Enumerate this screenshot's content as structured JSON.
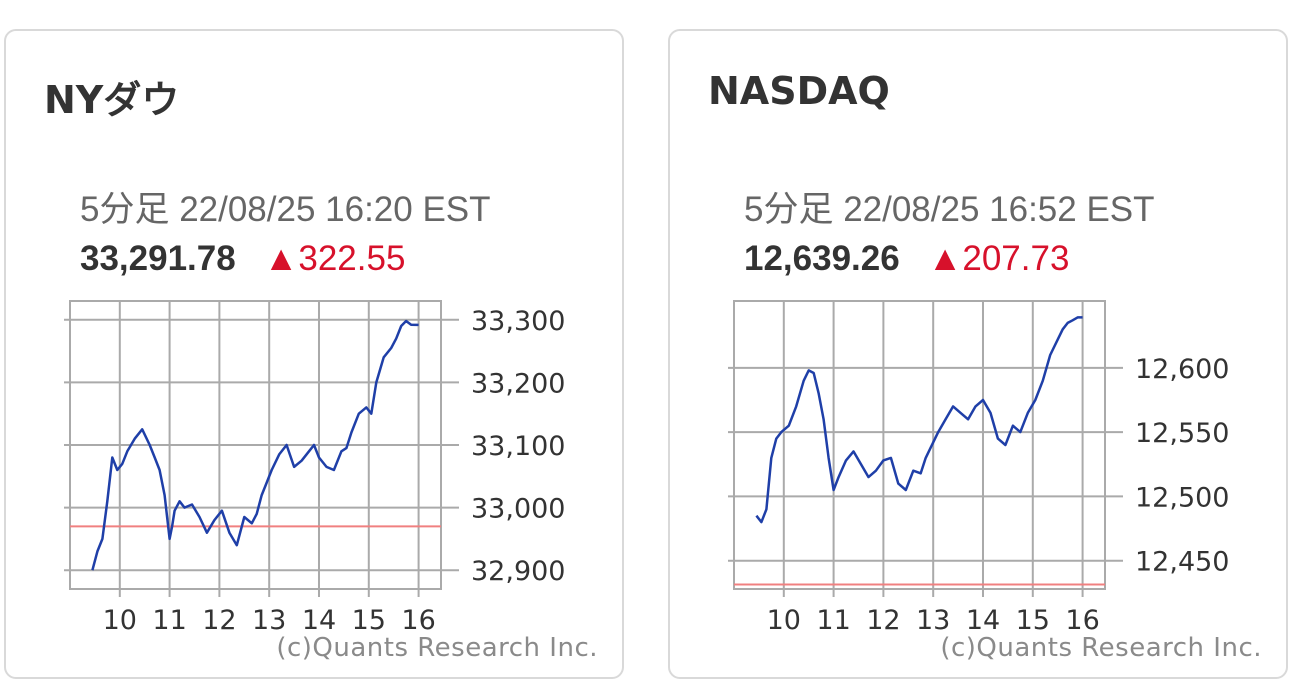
{
  "cards": [
    {
      "title": "NYダウ",
      "timestamp": "5分足 22/08/25 16:20 EST",
      "price": "33,291.78",
      "change_arrow": "▲",
      "change": "322.55",
      "credit": "(c)Quants Research Inc."
    },
    {
      "title": "NASDAQ",
      "timestamp": "5分足 22/08/25 16:52 EST",
      "price": "12,639.26",
      "change_arrow": "▲",
      "change": "207.73",
      "credit": "(c)Quants Research Inc."
    }
  ],
  "colors": {
    "line": "#1f3fa8",
    "reference": "#f08080",
    "grid": "#aaaaaa",
    "up": "#d7112b"
  },
  "chart_data": [
    {
      "type": "line",
      "x_tick_labels": [
        "10",
        "11",
        "12",
        "13",
        "14",
        "15",
        "16"
      ],
      "x_ticks": [
        10,
        11,
        12,
        13,
        14,
        15,
        16
      ],
      "xlim": [
        9.0,
        16.45
      ],
      "y_tick_labels": [
        "33,300",
        "33,200",
        "33,100",
        "33,000",
        "32,900"
      ],
      "y_ticks": [
        33300,
        33200,
        33100,
        33000,
        32900
      ],
      "ylim": [
        32870,
        33330
      ],
      "reference_line": 32970,
      "grid": true,
      "series": [
        {
          "x": [
            9.45,
            9.55,
            9.65,
            9.75,
            9.85,
            9.95,
            10.05,
            10.15,
            10.3,
            10.45,
            10.6,
            10.7,
            10.8,
            10.9,
            11.0,
            11.05,
            11.1,
            11.2,
            11.3,
            11.45,
            11.6,
            11.75,
            11.9,
            12.05,
            12.2,
            12.35,
            12.5,
            12.65,
            12.75,
            12.85,
            12.95,
            13.05,
            13.2,
            13.35,
            13.5,
            13.65,
            13.8,
            13.9,
            14.0,
            14.15,
            14.3,
            14.45,
            14.55,
            14.65,
            14.8,
            14.95,
            15.05,
            15.15,
            15.3,
            15.45,
            15.55,
            15.65,
            15.75,
            15.85,
            15.95,
            16.0
          ],
          "y": [
            32900,
            32930,
            32950,
            33010,
            33080,
            33060,
            33070,
            33090,
            33110,
            33125,
            33100,
            33080,
            33060,
            33020,
            32950,
            32970,
            32995,
            33010,
            33000,
            33005,
            32985,
            32960,
            32980,
            32995,
            32960,
            32940,
            32985,
            32975,
            32990,
            33020,
            33040,
            33060,
            33085,
            33100,
            33065,
            33075,
            33090,
            33100,
            33080,
            33065,
            33060,
            33090,
            33095,
            33120,
            33150,
            33160,
            33150,
            33200,
            33240,
            33255,
            33270,
            33290,
            33298,
            33292,
            33291.78,
            33291.78
          ]
        }
      ]
    },
    {
      "type": "line",
      "x_tick_labels": [
        "10",
        "11",
        "12",
        "13",
        "14",
        "15",
        "16"
      ],
      "x_ticks": [
        10,
        11,
        12,
        13,
        14,
        15,
        16
      ],
      "xlim": [
        9.0,
        16.45
      ],
      "y_tick_labels": [
        "12,600",
        "12,550",
        "12,500",
        "12,450"
      ],
      "y_ticks": [
        12600,
        12550,
        12500,
        12450
      ],
      "ylim": [
        12428,
        12652
      ],
      "reference_line": 12431.5,
      "grid": true,
      "series": [
        {
          "x": [
            9.45,
            9.55,
            9.65,
            9.75,
            9.85,
            9.95,
            10.1,
            10.25,
            10.4,
            10.5,
            10.6,
            10.7,
            10.8,
            10.9,
            11.0,
            11.1,
            11.25,
            11.4,
            11.55,
            11.7,
            11.85,
            12.0,
            12.15,
            12.3,
            12.45,
            12.6,
            12.75,
            12.85,
            12.95,
            13.1,
            13.25,
            13.4,
            13.55,
            13.7,
            13.85,
            14.0,
            14.15,
            14.3,
            14.45,
            14.6,
            14.75,
            14.9,
            15.05,
            15.2,
            15.35,
            15.5,
            15.6,
            15.7,
            15.8,
            15.9,
            16.0
          ],
          "y": [
            12485,
            12480,
            12490,
            12530,
            12545,
            12550,
            12555,
            12570,
            12590,
            12598,
            12596,
            12580,
            12560,
            12530,
            12505,
            12515,
            12528,
            12535,
            12525,
            12515,
            12520,
            12528,
            12530,
            12510,
            12505,
            12520,
            12518,
            12530,
            12538,
            12550,
            12560,
            12570,
            12565,
            12560,
            12570,
            12575,
            12565,
            12545,
            12540,
            12555,
            12550,
            12565,
            12575,
            12590,
            12610,
            12622,
            12630,
            12635,
            12637,
            12639.26,
            12639.26
          ]
        }
      ]
    }
  ]
}
